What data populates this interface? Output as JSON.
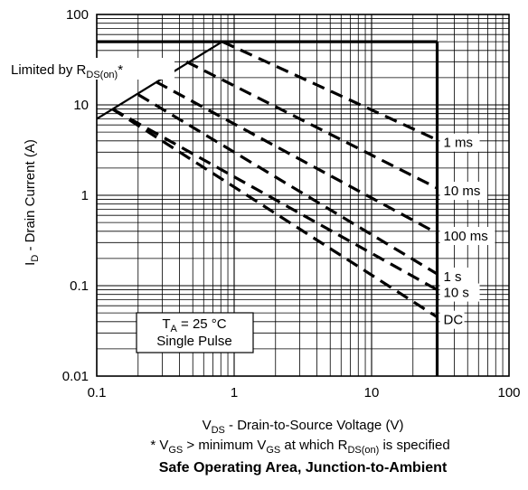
{
  "chart_data": {
    "type": "line",
    "title": "Safe Operating Area, Junction-to-Ambient",
    "xlabel": {
      "main": "V",
      "sub": "DS",
      "rest": " - Drain-to-Source Voltage (V)"
    },
    "ylabel": {
      "main": "I",
      "sub": "D",
      "rest": " - Drain Current (A)"
    },
    "x_scale": "log",
    "y_scale": "log",
    "xlim": [
      0.1,
      100
    ],
    "ylim": [
      0.01,
      100
    ],
    "grid": true,
    "x_ticks": [
      {
        "value": 0.1,
        "label": "0.1"
      },
      {
        "value": 1,
        "label": "1"
      },
      {
        "value": 10,
        "label": "10"
      },
      {
        "value": 100,
        "label": "100"
      }
    ],
    "y_ticks": [
      {
        "value": 0.01,
        "label": "0.01"
      },
      {
        "value": 0.1,
        "label": "0.1"
      },
      {
        "value": 1,
        "label": "1"
      },
      {
        "value": 10,
        "label": "10"
      },
      {
        "value": 100,
        "label": "100"
      }
    ],
    "boundary": {
      "current_limit_a": 50,
      "voltage_limit_v": 30
    },
    "rds_limit_line": [
      [
        0.1,
        7
      ],
      [
        0.82,
        50
      ]
    ],
    "series": [
      {
        "name": "1 ms",
        "values": [
          [
            0.82,
            50
          ],
          [
            30,
            4.1
          ]
        ]
      },
      {
        "name": "10 ms",
        "values": [
          [
            0.45,
            30
          ],
          [
            30,
            1.2
          ]
        ]
      },
      {
        "name": "100 ms",
        "values": [
          [
            0.27,
            18
          ],
          [
            30,
            0.38
          ]
        ]
      },
      {
        "name": "1 s",
        "values": [
          [
            0.2,
            13
          ],
          [
            30,
            0.135
          ]
        ]
      },
      {
        "name": "10 s",
        "values": [
          [
            0.13,
            9
          ],
          [
            30,
            0.09
          ]
        ]
      },
      {
        "name": "DC",
        "values": [
          [
            0.13,
            9
          ],
          [
            30,
            0.045
          ]
        ]
      }
    ],
    "rds_label": {
      "main": "Limited by R",
      "sub": "DS(on)",
      "rest": "*"
    },
    "conditions": {
      "ta_main": "T",
      "ta_sub": "A",
      "ta_rest": " = 25 °C",
      "pulse": "Single Pulse"
    },
    "footnote": {
      "p1": "* V",
      "s1": "GS",
      "p2": " > minimum V",
      "s2": "GS",
      "p3": " at which R",
      "s3": "DS(on)",
      "p4": " is specified"
    }
  }
}
